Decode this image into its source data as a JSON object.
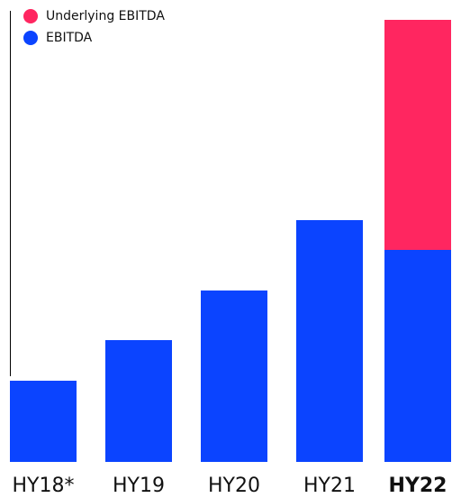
{
  "chart_data": {
    "type": "bar",
    "stacked": true,
    "categories": [
      "HY18*",
      "HY19",
      "HY20",
      "HY21",
      "HY22"
    ],
    "highlight_category": "HY22",
    "series": [
      {
        "name": "EBITDA",
        "color": "#0b44ff",
        "values": [
          90,
          135,
          190,
          268,
          235
        ]
      },
      {
        "name": "Underlying EBITDA",
        "color": "#ff2660",
        "values": [
          0,
          0,
          0,
          0,
          255
        ]
      }
    ],
    "legend_order": [
      "Underlying EBITDA",
      "EBITDA"
    ],
    "legend_position": "top-left",
    "ylim": [
      0,
      520
    ],
    "grid": false,
    "title": "",
    "xlabel": "",
    "ylabel": ""
  }
}
